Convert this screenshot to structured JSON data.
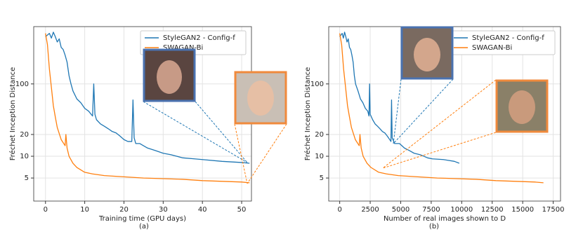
{
  "chart_data": [
    {
      "type": "line",
      "caption": "(a)",
      "xlabel": "Training time (GPU days)",
      "ylabel": "Fréchet Inception Distance",
      "yscale": "log",
      "grid": true,
      "legend": "upper right",
      "xlim": [
        -3,
        52.5
      ],
      "xticks": [
        0,
        10,
        20,
        30,
        40,
        50
      ],
      "ylim": [
        2.4,
        620
      ],
      "yticks": [
        5,
        10,
        20,
        100
      ],
      "series": [
        {
          "name": "StyleGAN2 - Config-f",
          "color": "#1f77b4",
          "x": [
            0,
            1,
            1.5,
            2,
            2.5,
            3,
            3.5,
            4,
            4.5,
            5,
            5.5,
            6,
            6.5,
            7,
            8,
            9,
            10,
            11,
            12,
            12.3,
            12.6,
            13,
            14,
            15,
            16,
            17,
            18,
            19,
            20,
            21,
            22,
            22.3,
            22.6,
            23,
            24,
            26,
            28,
            30,
            32,
            35,
            38,
            40,
            45,
            50,
            52
          ],
          "values": [
            450,
            500,
            430,
            520,
            450,
            380,
            420,
            320,
            300,
            250,
            200,
            130,
            100,
            80,
            62,
            55,
            46,
            42,
            36,
            100,
            38,
            32,
            28,
            26,
            24,
            22,
            21,
            19,
            17,
            16,
            16,
            60,
            18,
            15,
            15,
            13,
            12,
            11,
            10.5,
            9.5,
            9.2,
            9,
            8.5,
            8.2,
            8
          ]
        },
        {
          "name": "SWAGAN-Bi",
          "color": "#ff7f0e",
          "x": [
            0,
            0.5,
            1,
            1.5,
            2,
            2.5,
            3,
            4,
            5,
            5.2,
            5.5,
            6,
            7,
            8,
            10,
            12,
            15,
            20,
            25,
            30,
            35,
            40,
            45,
            50,
            52
          ],
          "values": [
            500,
            350,
            160,
            90,
            50,
            35,
            25,
            17,
            14,
            20,
            13,
            10,
            8,
            7,
            6,
            5.7,
            5.4,
            5.2,
            5,
            4.9,
            4.8,
            4.6,
            4.5,
            4.4,
            4.3
          ]
        }
      ]
    },
    {
      "type": "line",
      "caption": "(b)",
      "xlabel": "Number of real images shown to D",
      "ylabel": "Fréchet Inception Distance",
      "yscale": "log",
      "grid": true,
      "legend": "upper right",
      "xlim": [
        -900,
        18100
      ],
      "xticks": [
        0,
        2500,
        5000,
        7500,
        10000,
        12500,
        15000,
        17500
      ],
      "ylim": [
        2.4,
        620
      ],
      "yticks": [
        5,
        10,
        20,
        100
      ],
      "series": [
        {
          "name": "StyleGAN2 - Config-f",
          "color": "#1f77b4",
          "x": [
            0,
            200,
            300,
            400,
            500,
            600,
            700,
            800,
            900,
            1000,
            1100,
            1200,
            1300,
            1500,
            1700,
            1900,
            2100,
            2300,
            2400,
            2450,
            2500,
            2700,
            2900,
            3100,
            3300,
            3500,
            3700,
            3900,
            4100,
            4200,
            4250,
            4300,
            4500,
            4900,
            5300,
            5700,
            6100,
            6600,
            7200,
            7600,
            8500,
            9400,
            9800
          ],
          "values": [
            450,
            500,
            430,
            520,
            450,
            380,
            420,
            320,
            300,
            250,
            200,
            130,
            100,
            80,
            62,
            55,
            46,
            42,
            36,
            100,
            38,
            32,
            28,
            26,
            24,
            22,
            21,
            19,
            17,
            16,
            60,
            18,
            15,
            15,
            13,
            12,
            11,
            10.5,
            9.5,
            9.2,
            9,
            8.5,
            8
          ]
        },
        {
          "name": "SWAGAN-Bi",
          "color": "#ff7f0e",
          "x": [
            0,
            160,
            320,
            480,
            640,
            800,
            960,
            1280,
            1600,
            1660,
            1760,
            1920,
            2240,
            2560,
            3200,
            3840,
            4800,
            6400,
            8000,
            9600,
            11200,
            12800,
            14400,
            16000,
            16700
          ],
          "values": [
            500,
            350,
            160,
            90,
            50,
            35,
            25,
            17,
            14,
            20,
            13,
            10,
            8,
            7,
            6,
            5.7,
            5.4,
            5.2,
            5,
            4.9,
            4.8,
            4.6,
            4.5,
            4.4,
            4.3
          ]
        }
      ]
    }
  ]
}
